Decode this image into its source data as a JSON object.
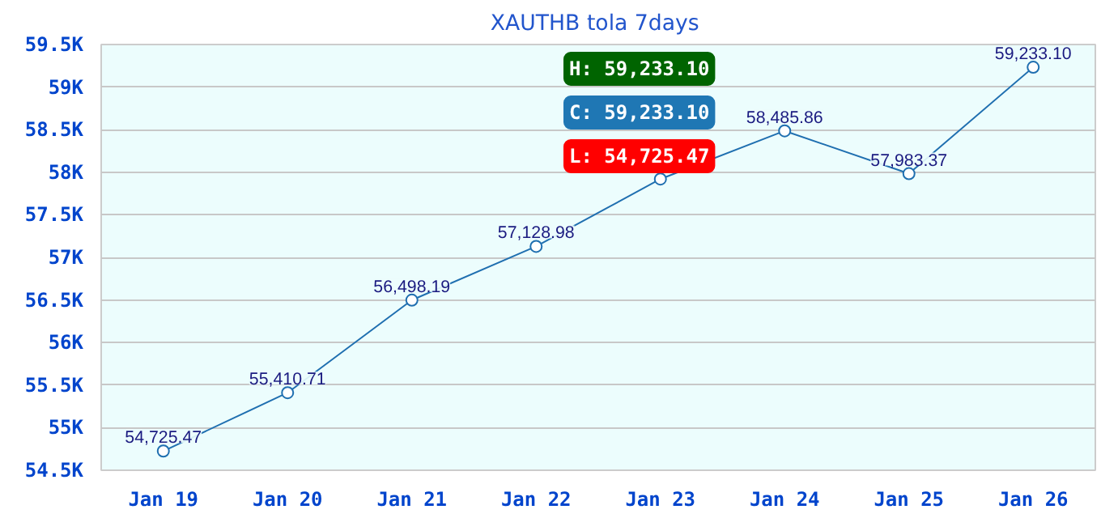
{
  "chart_data": {
    "type": "line",
    "title": "XAUTHB tola  7days",
    "categories": [
      "Jan 19",
      "Jan 20",
      "Jan 21",
      "Jan 22",
      "Jan 23",
      "Jan 24",
      "Jan 25",
      "Jan 26"
    ],
    "series": [
      {
        "color": "#1f6fb0",
        "values": [
          54725.47,
          55410.71,
          56498.19,
          57128.98,
          57920,
          58485.86,
          57983.37,
          59233.1
        ]
      }
    ],
    "value_labels": [
      "54,725.47",
      "55,410.71",
      "56,498.19",
      "57,128.98",
      null,
      "58,485.86",
      "57,983.37",
      "59,233.10"
    ],
    "ylim": [
      54500,
      59500
    ],
    "yticks": [
      {
        "value": 54500,
        "label": "54.5K"
      },
      {
        "value": 55000,
        "label": "55K"
      },
      {
        "value": 55500,
        "label": "55.5K"
      },
      {
        "value": 56000,
        "label": "56K"
      },
      {
        "value": 56500,
        "label": "56.5K"
      },
      {
        "value": 57000,
        "label": "57K"
      },
      {
        "value": 57500,
        "label": "57.5K"
      },
      {
        "value": 58000,
        "label": "58K"
      },
      {
        "value": 58500,
        "label": "58.5K"
      },
      {
        "value": 59000,
        "label": "59K"
      },
      {
        "value": 59500,
        "label": "59.5K"
      }
    ],
    "grid": "y",
    "marker": "circle",
    "line_style": "solid",
    "annotations": [
      "H: 59,233.10",
      "C: 59,233.10",
      "L: 54,725.47"
    ]
  }
}
